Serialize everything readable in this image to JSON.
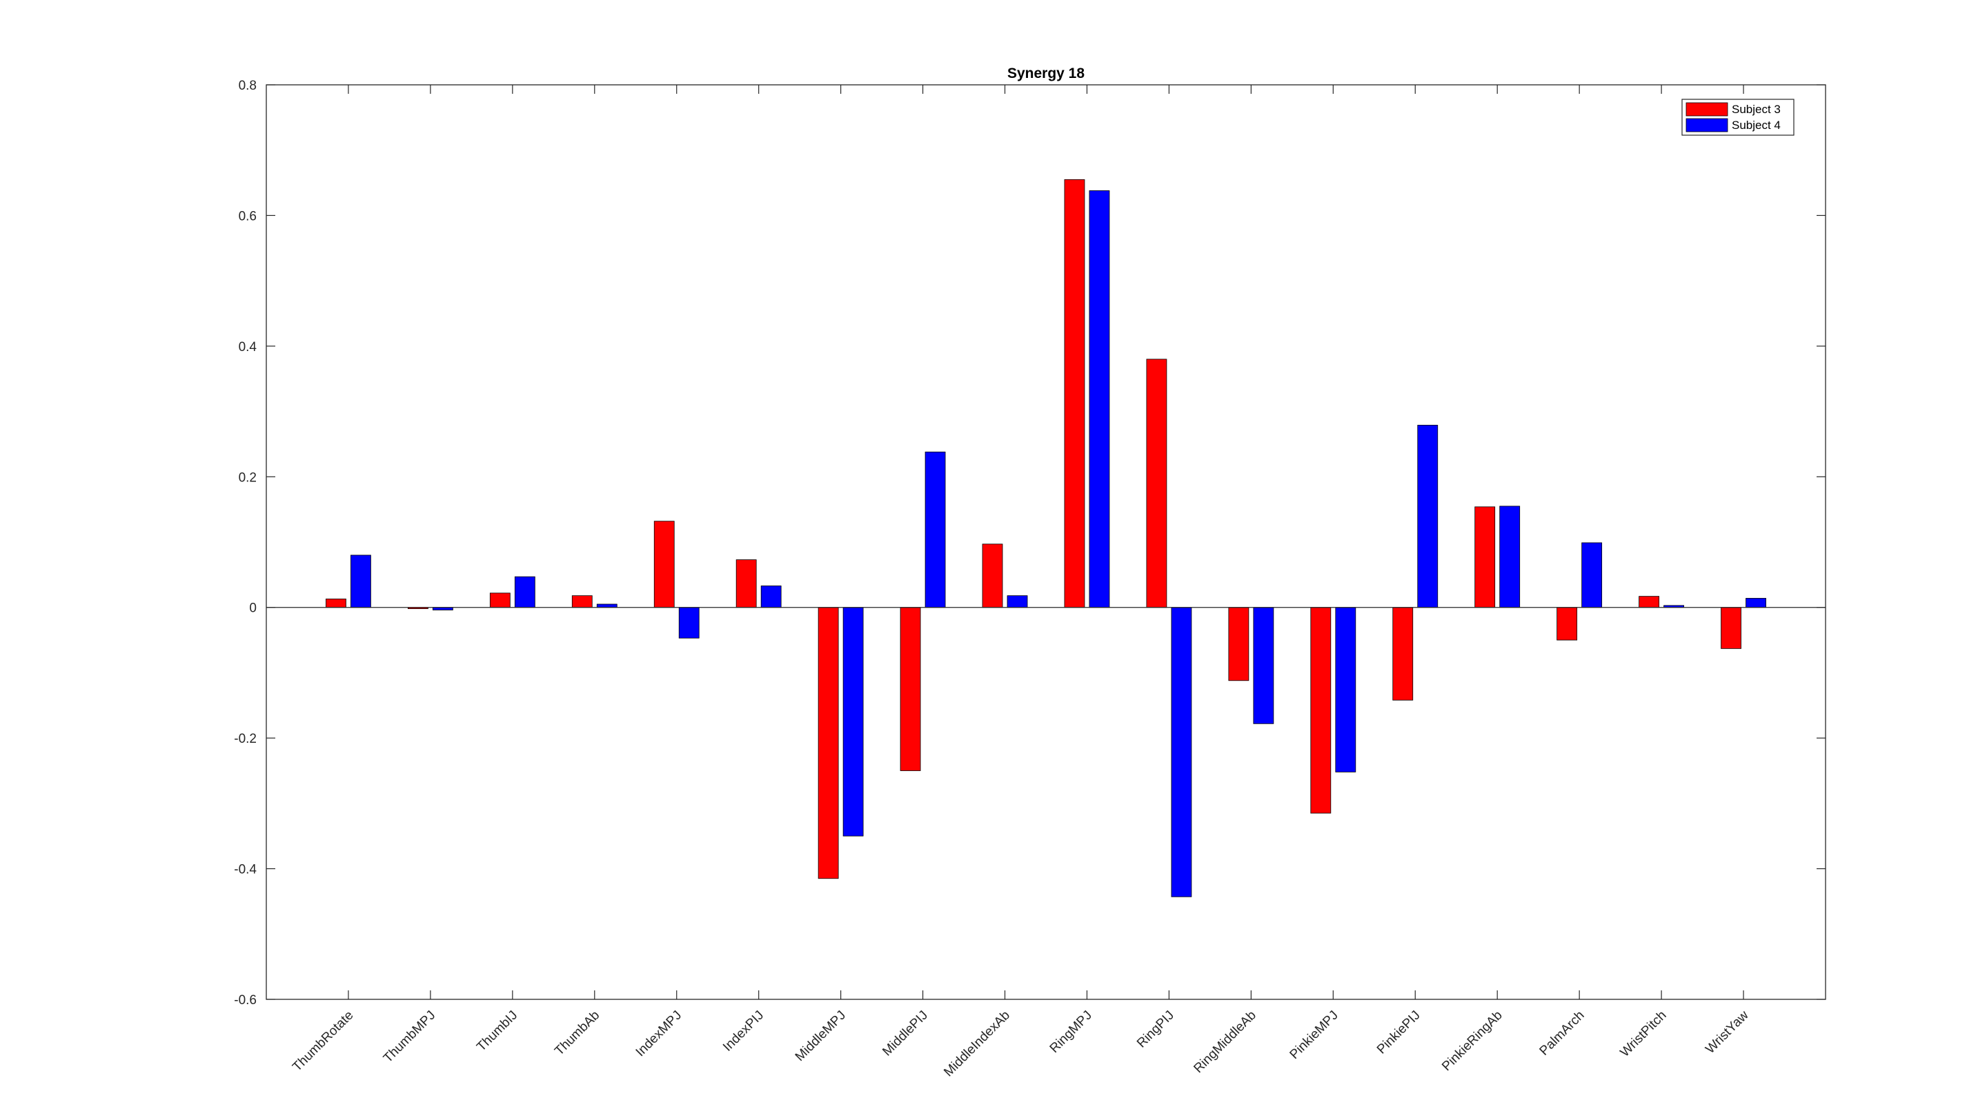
{
  "chart_data": {
    "type": "bar",
    "title": "Synergy 18",
    "xlabel": "",
    "ylabel": "",
    "ylim": [
      -0.6,
      0.8
    ],
    "yticks": [
      -0.6,
      -0.4,
      -0.2,
      0,
      0.2,
      0.4,
      0.6,
      0.8
    ],
    "ytick_labels": [
      "-0.6",
      "-0.4",
      "-0.2",
      "0",
      "0.2",
      "0.4",
      "0.6",
      "0.8"
    ],
    "grid": false,
    "legend_position": "top-right",
    "categories": [
      "ThumbRotate",
      "ThumbMPJ",
      "ThumbIJ",
      "ThumbAb",
      "IndexMPJ",
      "IndexPIJ",
      "MiddleMPJ",
      "MiddlePIJ",
      "MiddleIndexAb",
      "RingMPJ",
      "RingPIJ",
      "RingMiddleAb",
      "PinkieMPJ",
      "PinkiePIJ",
      "PinkieRingAb",
      "PalmArch",
      "WristPitch",
      "WristYaw"
    ],
    "series": [
      {
        "name": "Subject 3",
        "color": "#ff0000",
        "values": [
          0.013,
          -0.002,
          0.022,
          0.018,
          0.132,
          0.073,
          -0.415,
          -0.25,
          0.097,
          0.655,
          0.38,
          -0.112,
          -0.315,
          -0.142,
          0.154,
          -0.05,
          0.017,
          -0.063
        ]
      },
      {
        "name": "Subject 4",
        "color": "#0000ff",
        "values": [
          0.08,
          -0.004,
          0.047,
          0.005,
          -0.047,
          0.033,
          -0.35,
          0.238,
          0.018,
          0.638,
          -0.443,
          -0.178,
          -0.252,
          0.279,
          0.155,
          0.099,
          0.003,
          0.014
        ]
      }
    ]
  }
}
